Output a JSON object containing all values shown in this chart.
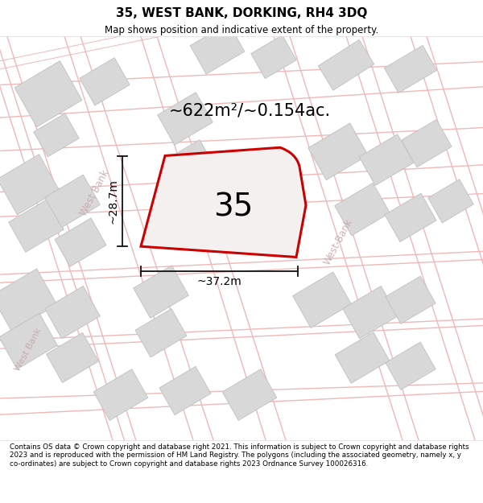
{
  "title": "35, WEST BANK, DORKING, RH4 3DQ",
  "subtitle": "Map shows position and indicative extent of the property.",
  "area_label": "~622m²/~0.154ac.",
  "number_label": "35",
  "width_label": "~37.2m",
  "height_label": "~28.7m",
  "footer": "Contains OS data © Crown copyright and database right 2021. This information is subject to Crown copyright and database rights 2023 and is reproduced with the permission of HM Land Registry. The polygons (including the associated geometry, namely x, y co-ordinates) are subject to Crown copyright and database rights 2023 Ordnance Survey 100026316.",
  "bg_color": "#ffffff",
  "map_bg": "#fafafa",
  "road_color": "#f0b8b8",
  "building_color": "#d8d8d8",
  "building_edge_color": "#c0c0c0",
  "highlight_color": "#cc0000",
  "highlight_fill": "#f5f0f0",
  "dim_line_color": "#111111",
  "road_label_color": "#c8a8a8",
  "road_label_1": "West Bank",
  "road_label_2": "West-Bank",
  "road_label_3": "West Bank"
}
